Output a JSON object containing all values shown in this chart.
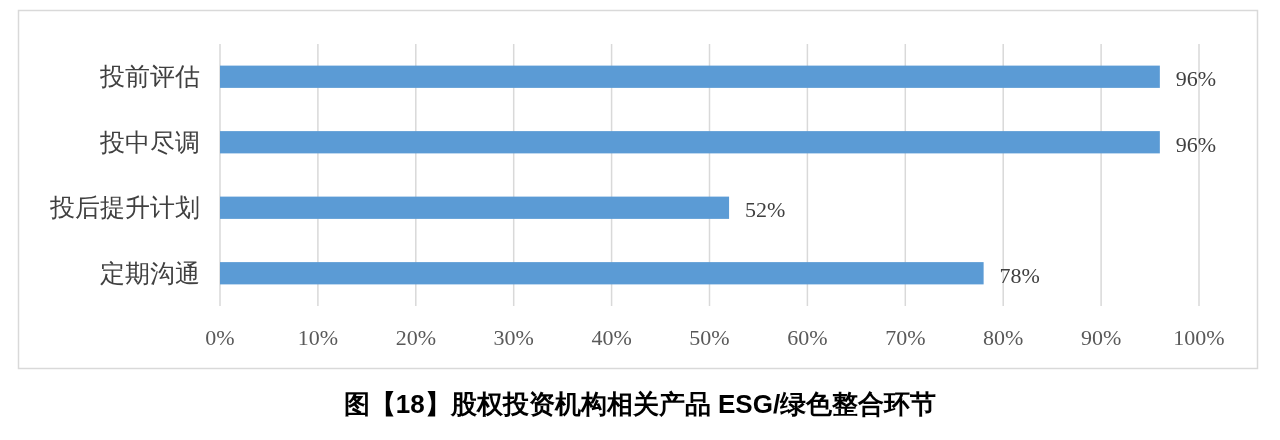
{
  "chart_data": {
    "type": "bar",
    "orientation": "horizontal",
    "title": "图【18】股权投资机构相关产品 ESG/绿色整合环节",
    "categories": [
      "投前评估",
      "投中尽调",
      "投后提升计划",
      "定期沟通"
    ],
    "values": [
      96,
      96,
      52,
      78
    ],
    "value_labels": [
      "96%",
      "96%",
      "52%",
      "78%"
    ],
    "color": "#5b9bd5",
    "xlim": [
      0,
      100
    ],
    "xticks": [
      {
        "value": 0,
        "label": "0%"
      },
      {
        "value": 10,
        "label": "10%"
      },
      {
        "value": 20,
        "label": "20%"
      },
      {
        "value": 30,
        "label": "30%"
      },
      {
        "value": 40,
        "label": "40%"
      },
      {
        "value": 50,
        "label": "50%"
      },
      {
        "value": 60,
        "label": "60%"
      },
      {
        "value": 70,
        "label": "70%"
      },
      {
        "value": 80,
        "label": "80%"
      },
      {
        "value": 90,
        "label": "90%"
      },
      {
        "value": 100,
        "label": "100%"
      }
    ],
    "grid": "x"
  }
}
